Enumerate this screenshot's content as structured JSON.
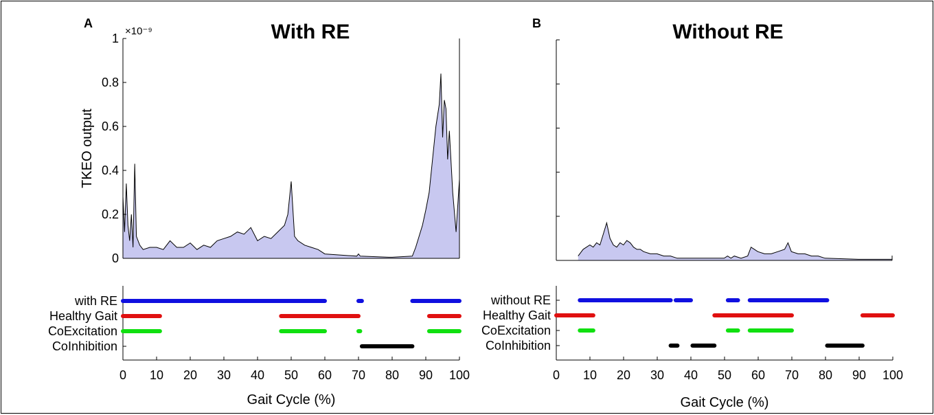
{
  "chart_data": [
    {
      "type": "area",
      "panel_label": "A",
      "title": "With RE",
      "ylabel": "TKEO output",
      "y_exponent": "×10⁻⁹",
      "ylim": [
        0,
        1
      ],
      "xlim": [
        0,
        100
      ],
      "yticks": [
        "0",
        "0.2",
        "0.4",
        "0.6",
        "0.8",
        "1"
      ],
      "fill_color": "#c8c8f0",
      "series": [
        {
          "x": [
            0,
            0.5,
            1,
            1.5,
            2,
            2.5,
            3,
            3.5,
            4,
            5,
            6,
            8,
            10,
            12,
            14,
            16,
            18,
            20,
            22,
            24,
            26,
            28,
            30,
            32,
            34,
            36,
            38,
            40,
            42,
            44,
            46,
            48,
            49,
            50,
            51,
            52,
            54,
            56,
            58,
            60,
            69.5,
            70,
            70.5,
            79,
            80,
            86,
            87,
            88,
            89,
            90,
            91,
            92,
            93,
            94,
            94.5,
            95,
            95.5,
            96,
            96.5,
            97,
            98,
            99,
            100
          ],
          "values": [
            0.28,
            0.12,
            0.34,
            0.15,
            0.08,
            0.2,
            0.05,
            0.43,
            0.1,
            0.06,
            0.04,
            0.05,
            0.05,
            0.04,
            0.08,
            0.05,
            0.05,
            0.07,
            0.04,
            0.06,
            0.05,
            0.08,
            0.09,
            0.1,
            0.12,
            0.11,
            0.14,
            0.08,
            0.1,
            0.09,
            0.12,
            0.15,
            0.2,
            0.35,
            0.1,
            0.08,
            0.06,
            0.05,
            0.04,
            0.02,
            0.01,
            0.02,
            0.01,
            0.005,
            0.005,
            0.01,
            0.05,
            0.1,
            0.15,
            0.22,
            0.3,
            0.45,
            0.6,
            0.7,
            0.84,
            0.55,
            0.72,
            0.68,
            0.45,
            0.58,
            0.3,
            0.12,
            0.36
          ]
        }
      ]
    },
    {
      "type": "area",
      "panel_label": "B",
      "title": "Without RE",
      "ylim": [
        0,
        1
      ],
      "xlim": [
        0,
        100
      ],
      "fill_color": "#c8c8f0",
      "series": [
        {
          "x": [
            6.5,
            7,
            8,
            9,
            10,
            11,
            12,
            13,
            14,
            15,
            16,
            17,
            18,
            19,
            20,
            21,
            22,
            23,
            24,
            25,
            26,
            28,
            30,
            32,
            34,
            36,
            38,
            40,
            50,
            51,
            52,
            53,
            55,
            57,
            58,
            59,
            60,
            62,
            64,
            66,
            68,
            69,
            70,
            72,
            74,
            76,
            78,
            80,
            90,
            100
          ],
          "values": [
            0.02,
            0.03,
            0.05,
            0.06,
            0.07,
            0.06,
            0.08,
            0.07,
            0.12,
            0.17,
            0.1,
            0.07,
            0.06,
            0.08,
            0.07,
            0.09,
            0.08,
            0.06,
            0.05,
            0.05,
            0.04,
            0.03,
            0.03,
            0.02,
            0.02,
            0.01,
            0.01,
            0.01,
            0.01,
            0.02,
            0.01,
            0.02,
            0.01,
            0.02,
            0.06,
            0.05,
            0.04,
            0.03,
            0.03,
            0.04,
            0.05,
            0.08,
            0.04,
            0.03,
            0.03,
            0.02,
            0.02,
            0.01,
            0.005,
            0.005
          ]
        }
      ]
    },
    {
      "type": "scatter",
      "panel_label": "A",
      "xlabel": "Gait Cycle (%)",
      "xlim": [
        0,
        100
      ],
      "xticks": [
        "0",
        "10",
        "20",
        "30",
        "40",
        "50",
        "60",
        "70",
        "80",
        "90",
        "100"
      ],
      "categories": [
        "with RE",
        "Healthy Gait",
        "CoExcitation",
        "CoInhibition"
      ],
      "colors": [
        "#1010e0",
        "#e01010",
        "#10e010",
        "#000000"
      ],
      "segments": [
        [
          [
            0,
            60
          ],
          [
            70,
            71
          ],
          [
            86,
            100
          ]
        ],
        [
          [
            0,
            11
          ],
          [
            47,
            70
          ],
          [
            91,
            100
          ]
        ],
        [
          [
            0,
            11
          ],
          [
            47,
            60
          ],
          [
            70,
            70.5
          ],
          [
            91,
            100
          ]
        ],
        [
          [
            71,
            86
          ]
        ]
      ]
    },
    {
      "type": "scatter",
      "panel_label": "B",
      "xlabel": "Gait Cycle (%)",
      "xlim": [
        0,
        100
      ],
      "xticks": [
        "0",
        "10",
        "20",
        "30",
        "40",
        "50",
        "60",
        "70",
        "80",
        "90",
        "100"
      ],
      "categories": [
        "without RE",
        "Healthy Gait",
        "CoExcitation",
        "CoInhibition"
      ],
      "colors": [
        "#1010e0",
        "#e01010",
        "#10e010",
        "#000000"
      ],
      "segments": [
        [
          [
            7,
            34
          ],
          [
            35.5,
            40
          ],
          [
            51,
            54
          ],
          [
            57.5,
            80.5
          ]
        ],
        [
          [
            0,
            11
          ],
          [
            47,
            70
          ],
          [
            91,
            100
          ]
        ],
        [
          [
            7,
            11
          ],
          [
            51,
            54
          ],
          [
            57.5,
            70
          ]
        ],
        [
          [
            34,
            36
          ],
          [
            40.5,
            47
          ],
          [
            80.5,
            91
          ]
        ]
      ]
    }
  ]
}
